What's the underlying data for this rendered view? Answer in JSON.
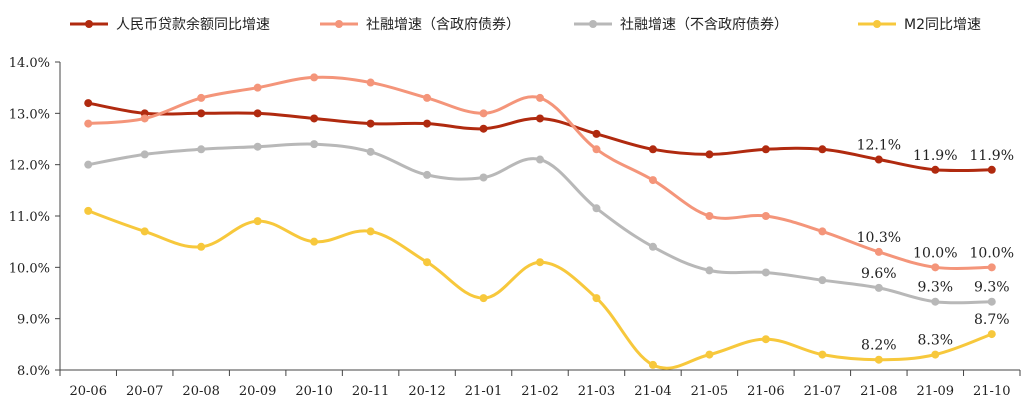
{
  "chart_data": {
    "type": "line",
    "title": "",
    "xlabel": "",
    "ylabel": "",
    "ylim": [
      8.0,
      14.0
    ],
    "y_ticks": [
      "8.0%",
      "9.0%",
      "10.0%",
      "11.0%",
      "12.0%",
      "13.0%",
      "14.0%"
    ],
    "grid": false,
    "legend_position": "top",
    "categories": [
      "20-06",
      "20-07",
      "20-08",
      "20-09",
      "20-10",
      "20-11",
      "20-12",
      "21-01",
      "21-02",
      "21-03",
      "21-04",
      "21-05",
      "21-06",
      "21-07",
      "21-08",
      "21-09",
      "21-10"
    ],
    "series": [
      {
        "name": "人民币贷款余额同比增速",
        "color": "#b02a0f",
        "values": [
          13.2,
          13.0,
          13.0,
          13.0,
          12.9,
          12.8,
          12.8,
          12.7,
          12.9,
          12.6,
          12.3,
          12.2,
          12.3,
          12.3,
          12.1,
          11.9,
          11.9
        ],
        "labels": [
          {
            "index": 14,
            "text": "12.1%"
          },
          {
            "index": 15,
            "text": "11.9%"
          },
          {
            "index": 16,
            "text": "11.9%"
          }
        ]
      },
      {
        "name": "社融增速（含政府债券）",
        "color": "#f4957a",
        "values": [
          12.8,
          12.9,
          13.3,
          13.5,
          13.7,
          13.6,
          13.3,
          13.0,
          13.3,
          12.3,
          11.7,
          11.0,
          11.0,
          10.7,
          10.3,
          10.0,
          10.0
        ],
        "labels": [
          {
            "index": 14,
            "text": "10.3%"
          },
          {
            "index": 15,
            "text": "10.0%"
          },
          {
            "index": 16,
            "text": "10.0%"
          }
        ]
      },
      {
        "name": "社融增速（不含政府债券）",
        "color": "#b8b8b8",
        "values": [
          12.0,
          12.2,
          12.3,
          12.35,
          12.4,
          12.25,
          11.8,
          11.75,
          12.1,
          11.15,
          10.4,
          9.94,
          9.9,
          9.75,
          9.6,
          9.33,
          9.33
        ],
        "labels": [
          {
            "index": 14,
            "text": "9.6%"
          },
          {
            "index": 15,
            "text": "9.3%"
          },
          {
            "index": 16,
            "text": "9.3%"
          }
        ]
      },
      {
        "name": "M2同比增速",
        "color": "#f7c83c",
        "values": [
          11.1,
          10.7,
          10.4,
          10.9,
          10.5,
          10.7,
          10.1,
          9.4,
          10.1,
          9.4,
          8.1,
          8.3,
          8.6,
          8.3,
          8.2,
          8.3,
          8.7
        ],
        "labels": [
          {
            "index": 14,
            "text": "8.2%"
          },
          {
            "index": 15,
            "text": "8.3%"
          },
          {
            "index": 16,
            "text": "8.7%"
          }
        ]
      }
    ]
  }
}
